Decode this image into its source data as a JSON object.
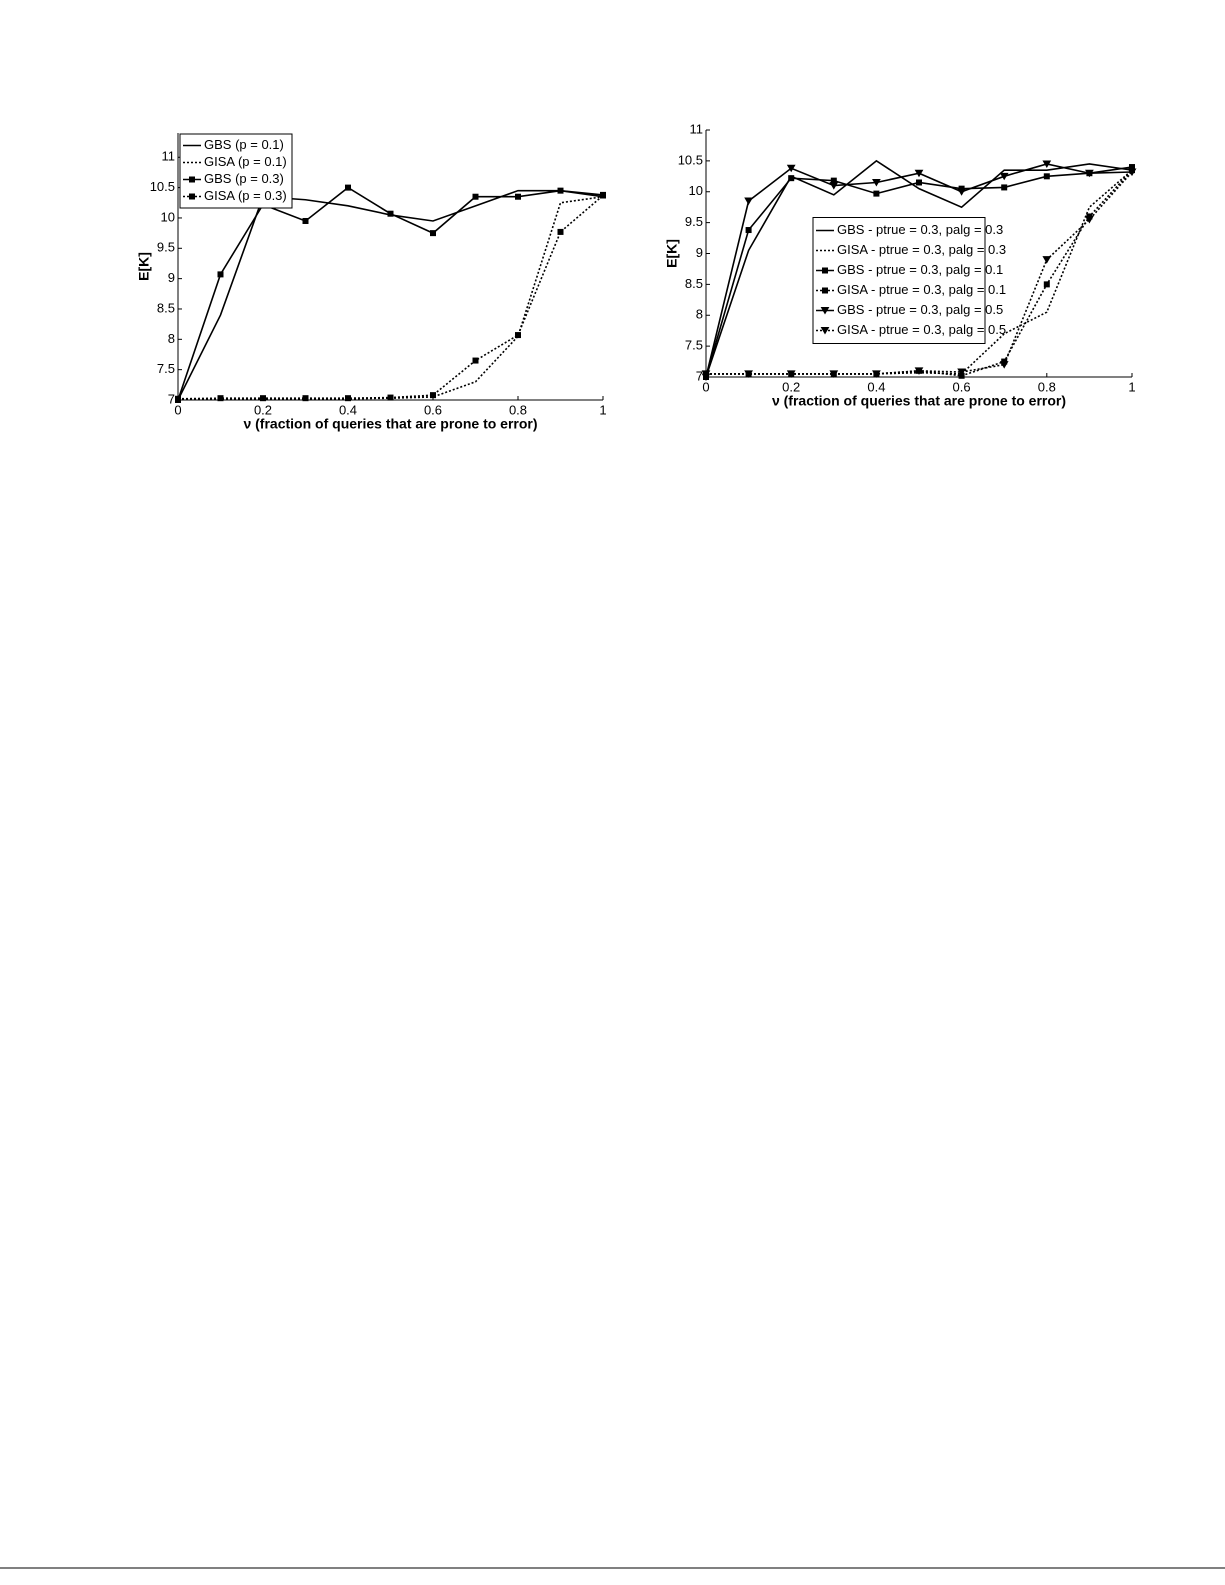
{
  "chart_data": [
    {
      "type": "line",
      "xlabel": "ν (fraction of queries that are prone to error)",
      "ylabel": "E[K]",
      "x": [
        0,
        0.1,
        0.2,
        0.3,
        0.4,
        0.5,
        0.6,
        0.7,
        0.8,
        0.9,
        1
      ],
      "xlim": [
        0,
        1
      ],
      "xticks": [
        0,
        0.2,
        0.4,
        0.6,
        0.8,
        1
      ],
      "ylim": [
        7,
        11.4
      ],
      "yticks": [
        7,
        7.5,
        8,
        8.5,
        9,
        9.5,
        10,
        10.5,
        11
      ],
      "legend": "upper left",
      "series": [
        {
          "name": "GBS (p = 0.1)",
          "color": "#000",
          "dash": "solid",
          "marker": "none",
          "values": [
            7,
            8.4,
            10.35,
            10.3,
            10.2,
            10.05,
            9.95,
            10.2,
            10.45,
            10.45,
            10.35
          ]
        },
        {
          "name": "GISA (p = 0.1)",
          "color": "#000",
          "dash": "dotted",
          "marker": "none",
          "values": [
            7.02,
            7.02,
            7.02,
            7.02,
            7.02,
            7.03,
            7.05,
            7.3,
            8.05,
            10.25,
            10.35
          ]
        },
        {
          "name": "GBS (p = 0.3)",
          "color": "#000",
          "dash": "solid",
          "marker": "square",
          "values": [
            7,
            9.07,
            10.22,
            9.95,
            10.5,
            10.07,
            9.75,
            10.35,
            10.35,
            10.45,
            10.38
          ]
        },
        {
          "name": "GISA (p = 0.3)",
          "color": "#000",
          "dash": "dotted",
          "marker": "square",
          "values": [
            7.02,
            7.03,
            7.03,
            7.03,
            7.03,
            7.04,
            7.08,
            7.65,
            8.07,
            9.77,
            10.37
          ]
        }
      ]
    },
    {
      "type": "line",
      "xlabel": "ν (fraction of queries that are prone to error)",
      "ylabel": "E[K]",
      "x": [
        0,
        0.1,
        0.2,
        0.3,
        0.4,
        0.5,
        0.6,
        0.7,
        0.8,
        0.9,
        1
      ],
      "xlim": [
        0,
        1
      ],
      "xticks": [
        0,
        0.2,
        0.4,
        0.6,
        0.8,
        1
      ],
      "ylim": [
        7,
        11
      ],
      "yticks": [
        7,
        7.5,
        8,
        8.5,
        9,
        9.5,
        10,
        10.5,
        11
      ],
      "legend": "center",
      "series": [
        {
          "name": "GBS  - ptrue = 0.3, palg = 0.3",
          "color": "#000",
          "dash": "solid",
          "marker": "none",
          "values": [
            7,
            9.05,
            10.25,
            9.95,
            10.5,
            10.05,
            9.75,
            10.35,
            10.35,
            10.45,
            10.35
          ]
        },
        {
          "name": "GISA - ptrue = 0.3, palg = 0.3",
          "color": "#000",
          "dash": "dotted",
          "marker": "none",
          "values": [
            7.05,
            7.05,
            7.05,
            7.05,
            7.05,
            7.07,
            7.05,
            7.7,
            8.05,
            9.75,
            10.35
          ]
        },
        {
          "name": "GBS  - ptrue = 0.3, palg = 0.1",
          "color": "#000",
          "dash": "solid",
          "marker": "square",
          "values": [
            7,
            9.38,
            10.22,
            10.18,
            9.97,
            10.15,
            10.05,
            10.07,
            10.25,
            10.3,
            10.4
          ]
        },
        {
          "name": "GISA - ptrue = 0.3, palg = 0.1",
          "color": "#000",
          "dash": "dotted",
          "marker": "square",
          "values": [
            7.05,
            7.05,
            7.05,
            7.05,
            7.05,
            7.1,
            7.02,
            7.25,
            8.5,
            9.6,
            10.35
          ]
        },
        {
          "name": "GBS  - ptrue = 0.3, palg = 0.5",
          "color": "#000",
          "dash": "solid",
          "marker": "triangle",
          "values": [
            7,
            9.85,
            10.38,
            10.1,
            10.15,
            10.3,
            10.0,
            10.25,
            10.45,
            10.3,
            10.32
          ]
        },
        {
          "name": "GISA - ptrue = 0.3, palg = 0.5",
          "color": "#000",
          "dash": "dotted",
          "marker": "triangle",
          "values": [
            7.05,
            7.05,
            7.05,
            7.05,
            7.05,
            7.1,
            7.08,
            7.2,
            8.9,
            9.55,
            10.32
          ]
        }
      ]
    }
  ]
}
